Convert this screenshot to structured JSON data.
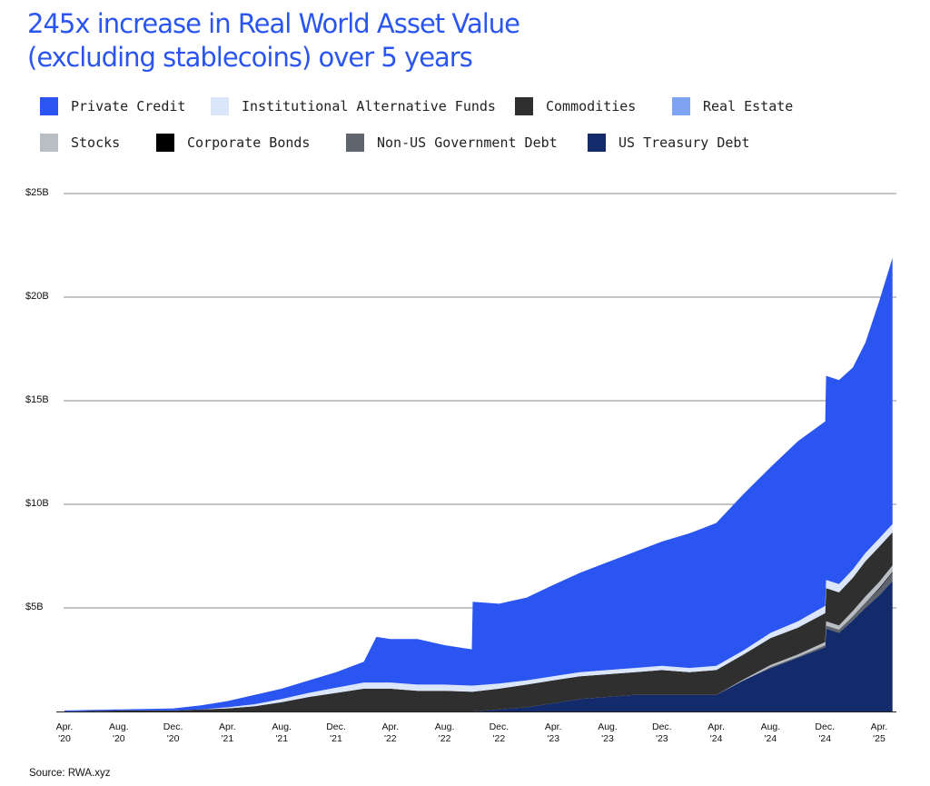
{
  "title_line1": "245x increase in Real World Asset Value",
  "title_line2": "(excluding stablecoins) over 5 years",
  "source": "Source: RWA.xyz",
  "legend": [
    {
      "label": "Private Credit",
      "color": "#2b55f0"
    },
    {
      "label": "Institutional Alternative Funds",
      "color": "#dbe6fb"
    },
    {
      "label": "Commodities",
      "color": "#2f2f2f"
    },
    {
      "label": "Real Estate",
      "color": "#7ea3f3"
    },
    {
      "label": "Stocks",
      "color": "#b9bdc4"
    },
    {
      "label": "Corporate Bonds",
      "color": "#000000"
    },
    {
      "label": "Non-US Government Debt",
      "color": "#5f646d"
    },
    {
      "label": "US Treasury Debt",
      "color": "#142b6b"
    }
  ],
  "chart_data": {
    "type": "area",
    "stacked": true,
    "title": "245x increase in Real World Asset Value (excluding stablecoins) over 5 years",
    "ylim": [
      0,
      25
    ],
    "y_ticks": [
      "$5B",
      "$10B",
      "$15B",
      "$20B",
      "$25B"
    ],
    "x_ticks": [
      [
        "Apr.",
        "'20"
      ],
      [
        "Aug.",
        "'20"
      ],
      [
        "Dec.",
        "'20"
      ],
      [
        "Apr.",
        "'21"
      ],
      [
        "Aug.",
        "'21"
      ],
      [
        "Dec.",
        "'21"
      ],
      [
        "Apr.",
        "'22"
      ],
      [
        "Aug.",
        "'22"
      ],
      [
        "Dec.",
        "'22"
      ],
      [
        "Apr.",
        "'23"
      ],
      [
        "Aug.",
        "'23"
      ],
      [
        "Dec.",
        "'23"
      ],
      [
        "Apr.",
        "'24"
      ],
      [
        "Aug.",
        "'24"
      ],
      [
        "Dec.",
        "'24"
      ],
      [
        "Apr.",
        "'25"
      ]
    ],
    "grid": true,
    "legend_position": "top",
    "x": [
      "2020-04",
      "2020-08",
      "2020-12",
      "2021-02",
      "2021-04",
      "2021-06",
      "2021-08",
      "2021-10",
      "2021-12",
      "2022-02",
      "2022-03",
      "2022-04",
      "2022-06",
      "2022-08",
      "2022-10",
      "2022-10",
      "2022-12",
      "2023-02",
      "2023-04",
      "2023-06",
      "2023-08",
      "2023-10",
      "2023-12",
      "2024-02",
      "2024-04",
      "2024-06",
      "2024-08",
      "2024-10",
      "2024-12",
      "2024-12",
      "2025-01",
      "2025-02",
      "2025-03",
      "2025-04",
      "2025-05"
    ],
    "total": [
      0.05,
      0.1,
      0.15,
      0.3,
      0.5,
      0.8,
      1.1,
      1.5,
      1.9,
      2.4,
      3.6,
      3.5,
      3.5,
      3.2,
      3.0,
      5.3,
      5.2,
      5.5,
      6.1,
      6.7,
      7.2,
      7.7,
      8.2,
      8.6,
      9.1,
      10.5,
      11.8,
      13.0,
      14.0,
      16.2,
      16.0,
      16.6,
      17.8,
      19.8,
      21.9
    ],
    "series": [
      {
        "name": "US Treasury Debt",
        "values": [
          0.0,
          0.0,
          0.0,
          0.0,
          0.0,
          0.0,
          0.0,
          0.0,
          0.0,
          0.0,
          0.0,
          0.0,
          0.0,
          0.0,
          0.0,
          0.0,
          0.1,
          0.2,
          0.4,
          0.6,
          0.7,
          0.8,
          0.8,
          0.8,
          0.8,
          1.5,
          2.1,
          2.6,
          3.1,
          4.0,
          3.8,
          4.4,
          5.0,
          5.6,
          6.3
        ]
      },
      {
        "name": "Non-US Government Debt",
        "values": [
          0.0,
          0.0,
          0.0,
          0.0,
          0.0,
          0.0,
          0.0,
          0.0,
          0.0,
          0.0,
          0.0,
          0.0,
          0.0,
          0.0,
          0.0,
          0.0,
          0.0,
          0.0,
          0.0,
          0.0,
          0.0,
          0.0,
          0.0,
          0.0,
          0.0,
          0.0,
          0.05,
          0.05,
          0.1,
          0.15,
          0.15,
          0.2,
          0.25,
          0.3,
          0.4
        ]
      },
      {
        "name": "Corporate Bonds",
        "values": [
          0.0,
          0.0,
          0.0,
          0.0,
          0.0,
          0.0,
          0.0,
          0.0,
          0.0,
          0.0,
          0.0,
          0.0,
          0.0,
          0.0,
          0.0,
          0.0,
          0.0,
          0.0,
          0.0,
          0.0,
          0.0,
          0.0,
          0.0,
          0.0,
          0.0,
          0.0,
          0.0,
          0.0,
          0.0,
          0.0,
          0.0,
          0.0,
          0.0,
          0.05,
          0.05
        ]
      },
      {
        "name": "Stocks",
        "values": [
          0.0,
          0.0,
          0.0,
          0.0,
          0.0,
          0.0,
          0.0,
          0.0,
          0.0,
          0.0,
          0.0,
          0.0,
          0.0,
          0.0,
          0.0,
          0.0,
          0.0,
          0.0,
          0.0,
          0.0,
          0.0,
          0.0,
          0.0,
          0.0,
          0.0,
          0.05,
          0.1,
          0.1,
          0.15,
          0.2,
          0.2,
          0.25,
          0.3,
          0.3,
          0.3
        ]
      },
      {
        "name": "Real Estate",
        "values": [
          0.0,
          0.0,
          0.0,
          0.0,
          0.0,
          0.0,
          0.0,
          0.0,
          0.0,
          0.0,
          0.0,
          0.0,
          0.0,
          0.0,
          0.0,
          0.0,
          0.0,
          0.0,
          0.0,
          0.0,
          0.0,
          0.0,
          0.0,
          0.0,
          0.0,
          0.0,
          0.0,
          0.0,
          0.0,
          0.0,
          0.0,
          0.0,
          0.0,
          0.0,
          0.0
        ]
      },
      {
        "name": "Commodities",
        "values": [
          0.0,
          0.05,
          0.05,
          0.1,
          0.15,
          0.25,
          0.45,
          0.7,
          0.9,
          1.1,
          1.1,
          1.1,
          1.0,
          1.0,
          0.95,
          0.95,
          1.0,
          1.1,
          1.1,
          1.1,
          1.1,
          1.1,
          1.2,
          1.1,
          1.2,
          1.2,
          1.3,
          1.3,
          1.4,
          1.6,
          1.6,
          1.6,
          1.7,
          1.7,
          1.6
        ]
      },
      {
        "name": "Institutional Alternative Funds",
        "values": [
          0.0,
          0.0,
          0.0,
          0.0,
          0.05,
          0.1,
          0.15,
          0.2,
          0.25,
          0.3,
          0.3,
          0.3,
          0.3,
          0.3,
          0.3,
          0.3,
          0.25,
          0.2,
          0.2,
          0.2,
          0.2,
          0.2,
          0.2,
          0.2,
          0.2,
          0.2,
          0.25,
          0.3,
          0.35,
          0.4,
          0.4,
          0.4,
          0.4,
          0.4,
          0.4
        ]
      },
      {
        "name": "Private Credit",
        "values": [
          0.05,
          0.05,
          0.1,
          0.2,
          0.3,
          0.45,
          0.5,
          0.6,
          0.75,
          1.0,
          2.2,
          2.1,
          2.2,
          1.9,
          1.75,
          4.05,
          3.85,
          4.0,
          4.4,
          4.8,
          5.2,
          5.6,
          6.0,
          6.5,
          6.9,
          7.55,
          8.0,
          8.7,
          8.9,
          9.85,
          9.85,
          9.75,
          10.15,
          11.45,
          12.85
        ]
      }
    ]
  }
}
